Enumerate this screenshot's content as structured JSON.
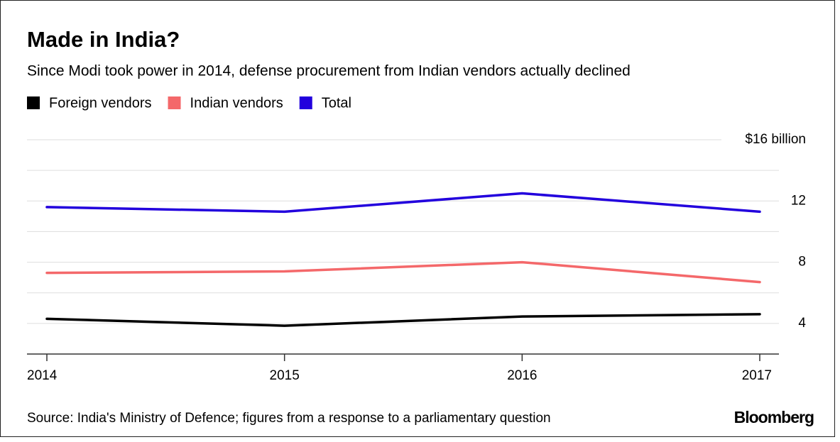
{
  "chart_data": {
    "type": "line",
    "title": "Made in India?",
    "subtitle": "Since Modi took power in 2014, defense procurement from Indian vendors actually declined",
    "source": "Source: India's Ministry of Defence; figures from a response to a parliamentary question",
    "credit": "Bloomberg",
    "x": [
      2014,
      2015,
      2016,
      2017
    ],
    "xlim": [
      2014,
      2017
    ],
    "xticks": [
      2014,
      2015,
      2016,
      2017
    ],
    "ylim": [
      2,
      16
    ],
    "yticks": [
      4,
      8,
      12,
      {
        "value": 16,
        "label": "$16 billion"
      }
    ],
    "minor_yticks": [
      6,
      10,
      14
    ],
    "grid": true,
    "legend": "top-left",
    "series": [
      {
        "name": "Foreign vendors",
        "color": "#000000",
        "values": [
          4.3,
          3.85,
          4.45,
          4.6
        ]
      },
      {
        "name": "Indian vendors",
        "color": "#f4686a",
        "values": [
          7.3,
          7.4,
          8.0,
          6.7
        ]
      },
      {
        "name": "Total",
        "color": "#2200dd",
        "values": [
          11.6,
          11.3,
          12.5,
          11.3
        ]
      }
    ]
  }
}
